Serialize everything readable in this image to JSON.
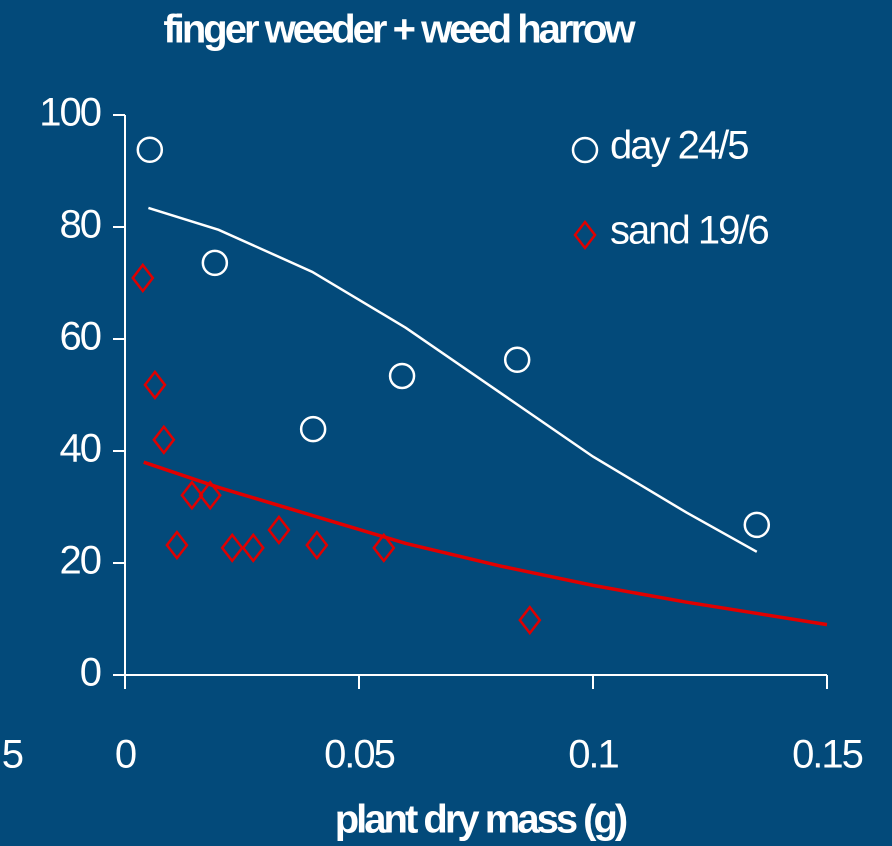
{
  "chart_data": {
    "type": "scatter",
    "title": "finger weeder + weed harrow",
    "x_label": "plant dry mass (g)",
    "annotations": [
      "5"
    ],
    "xlim": [
      0,
      0.15
    ],
    "xticks": [
      0,
      0.05,
      0.1,
      0.15
    ],
    "ylim": [
      0,
      100
    ],
    "yticks": [
      0,
      20,
      40,
      60,
      80,
      100
    ],
    "grid": false,
    "legend": "upper right",
    "series": [
      {
        "name": "day 24/5",
        "color": "#ffffff",
        "marker": "circle",
        "x": [
          0.0053,
          0.0192,
          0.0402,
          0.0592,
          0.0838,
          0.135
        ],
        "values": [
          93.8,
          73.6,
          43.9,
          53.4,
          56.3,
          26.8
        ]
      },
      {
        "name": "sand 19/6",
        "color": "#e00000",
        "marker": "diamond",
        "x": [
          0.0038,
          0.0064,
          0.0083,
          0.0111,
          0.0143,
          0.0182,
          0.0229,
          0.0274,
          0.0329,
          0.041,
          0.0553,
          0.0865
        ],
        "values": [
          70.9,
          51.8,
          42,
          23.2,
          32.1,
          32.1,
          22.7,
          22.7,
          25.9,
          23.2,
          22.7,
          9.8
        ]
      }
    ],
    "fits": [
      {
        "color": "#ffffff",
        "x": [
          0.005,
          0.02,
          0.04,
          0.06,
          0.08,
          0.1,
          0.12,
          0.135
        ],
        "values": [
          83.4,
          79.5,
          72,
          62,
          50.5,
          39,
          29,
          22
        ]
      },
      {
        "color": "#e00000",
        "x": [
          0.004,
          0.02,
          0.04,
          0.06,
          0.08,
          0.1,
          0.12,
          0.15
        ],
        "values": [
          38,
          33.5,
          28.5,
          23.5,
          19.5,
          16,
          13,
          9
        ]
      }
    ]
  }
}
